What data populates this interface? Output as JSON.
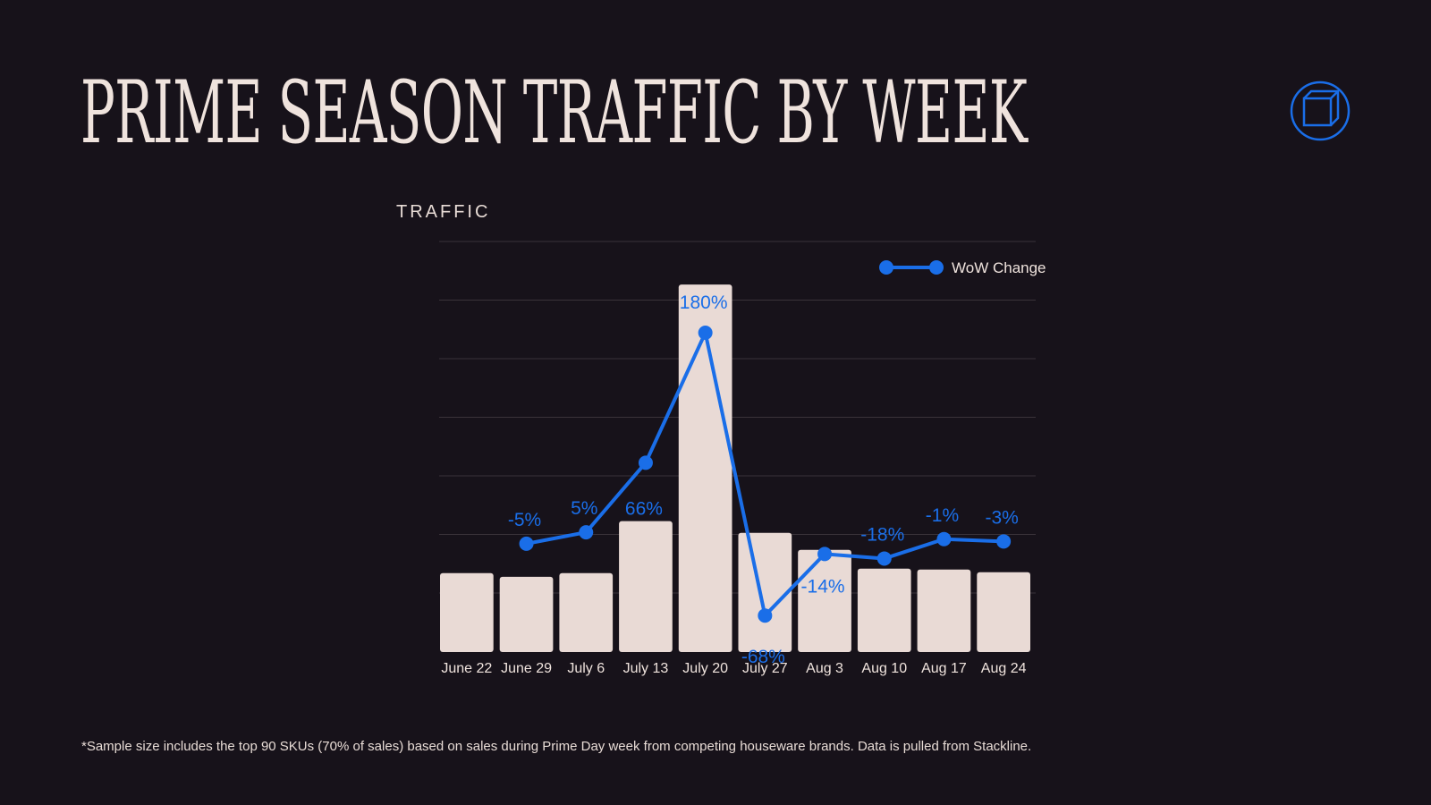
{
  "title": "PRIME SEASON TRAFFIC BY WEEK",
  "footnote": "*Sample size includes the top 90 SKUs (70% of sales) based on sales during Prime Day week from competing houseware brands. Data is pulled from Stackline.",
  "logo": {
    "icon": "cube-outline-icon",
    "color": "#1a6ee8"
  },
  "colors": {
    "background": "#17121a",
    "bar": "#e9dad5",
    "line": "#1a6ee8",
    "text": "#efe3dd",
    "grid": "#3a3339"
  },
  "chart_data": {
    "type": "bar",
    "ylabel": "TRAFFIC",
    "categories": [
      "June 22",
      "June 29",
      "July 6",
      "July 13",
      "July 20",
      "July 27",
      "Aug 3",
      "Aug 10",
      "Aug 17",
      "Aug 24"
    ],
    "series": [
      {
        "kind": "bar",
        "values": [
          88,
          84,
          88,
          146,
          410,
          133,
          114,
          93,
          92,
          89
        ]
      },
      {
        "kind": "line",
        "name": "WoW Change",
        "values": [
          null,
          -5,
          5,
          66,
          180,
          -68,
          -14,
          -18,
          -1,
          -3
        ],
        "labels": [
          "",
          "-5%",
          "5%",
          "66%",
          "180%",
          "-68%",
          "-14%",
          "-18%",
          "-1%",
          "-3%"
        ]
      }
    ],
    "ylim": [
      0,
      458
    ],
    "y2lim": [
      -100,
      260
    ],
    "grid": true,
    "legend": {
      "position": "top-right",
      "entries": [
        "WoW Change"
      ]
    }
  }
}
